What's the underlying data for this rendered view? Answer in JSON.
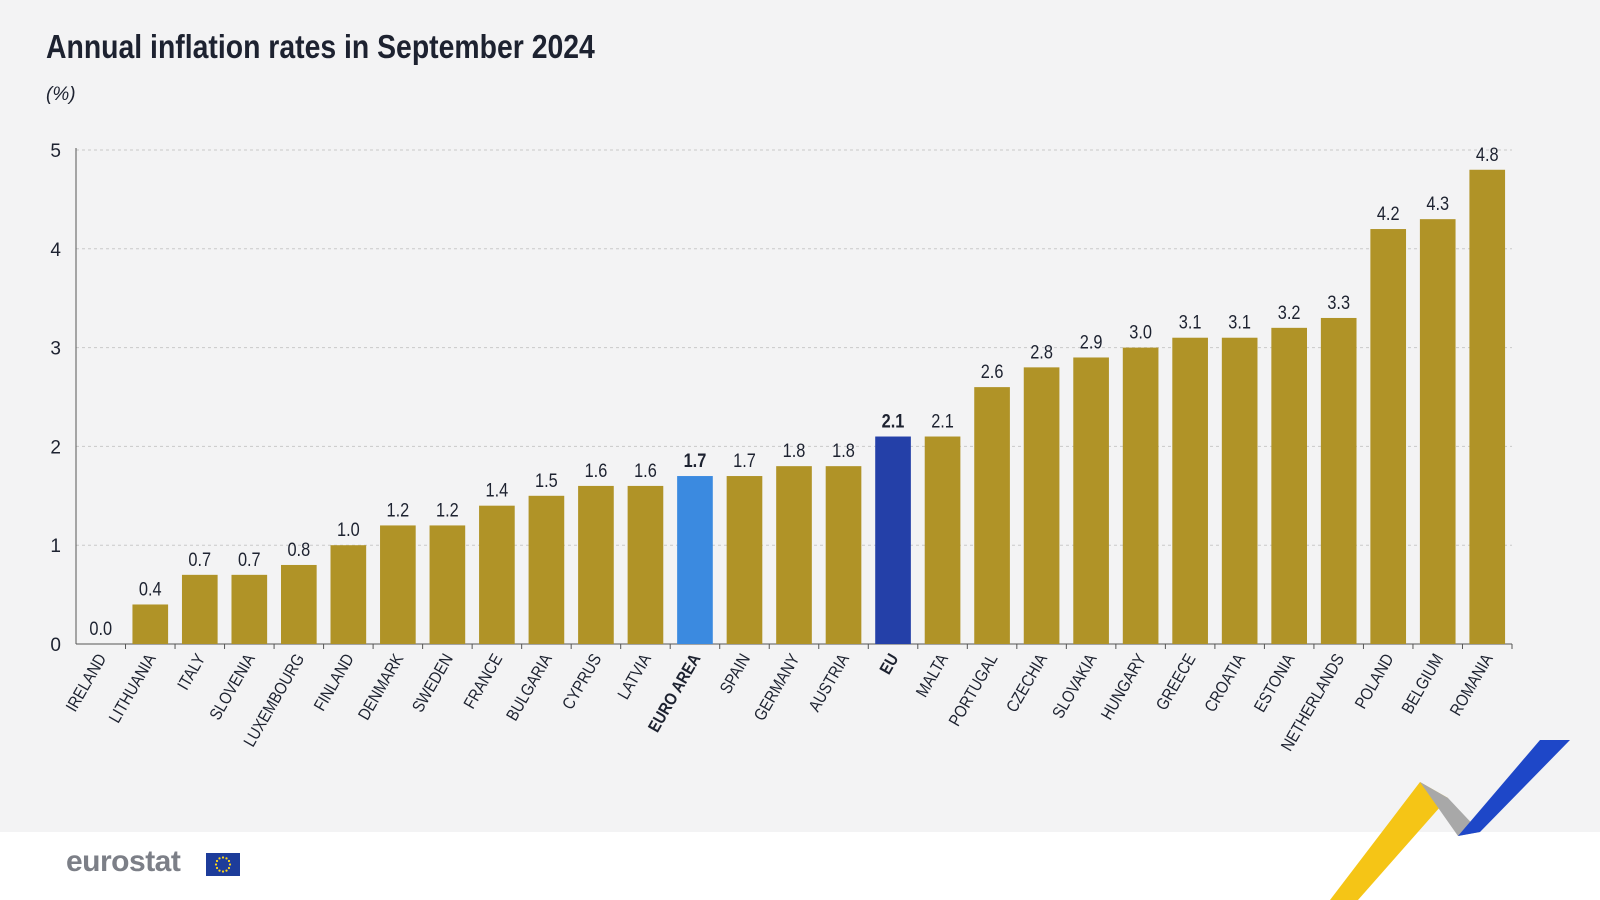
{
  "header": {
    "title": "Annual inflation rates in September 2024",
    "unit": "(%)"
  },
  "footer": {
    "logo_text": "eurostat"
  },
  "colors": {
    "country": "#b09327",
    "euro_area": "#3b8ae0",
    "eu": "#2440a8",
    "grid": "#c9c9c9",
    "axis": "#555555",
    "text": "#1d2230"
  },
  "chart_data": {
    "type": "bar",
    "title": "Annual inflation rates in September 2024",
    "ylabel": "(%)",
    "xlabel": "",
    "ylim": [
      0,
      5
    ],
    "yticks": [
      0,
      1,
      2,
      3,
      4,
      5
    ],
    "grid": true,
    "categories": [
      "IRELAND",
      "LITHUANIA",
      "ITALY",
      "SLOVENIA",
      "LUXEMBOURG",
      "FINLAND",
      "DENMARK",
      "SWEDEN",
      "FRANCE",
      "BULGARIA",
      "CYPRUS",
      "LATVIA",
      "EURO AREA",
      "SPAIN",
      "GERMANY",
      "AUSTRIA",
      "EU",
      "MALTA",
      "PORTUGAL",
      "CZECHIA",
      "SLOVAKIA",
      "HUNGARY",
      "GREECE",
      "CROATIA",
      "ESTONIA",
      "NETHERLANDS",
      "POLAND",
      "BELGIUM",
      "ROMANIA"
    ],
    "values": [
      0.0,
      0.4,
      0.7,
      0.7,
      0.8,
      1.0,
      1.2,
      1.2,
      1.4,
      1.5,
      1.6,
      1.6,
      1.7,
      1.7,
      1.8,
      1.8,
      2.1,
      2.1,
      2.6,
      2.8,
      2.9,
      3.0,
      3.1,
      3.1,
      3.2,
      3.3,
      4.2,
      4.3,
      4.8
    ],
    "value_labels": [
      "0.0",
      "0.4",
      "0.7",
      "0.7",
      "0.8",
      "1.0",
      "1.2",
      "1.2",
      "1.4",
      "1.5",
      "1.6",
      "1.6",
      "1.7",
      "1.7",
      "1.8",
      "1.8",
      "2.1",
      "2.1",
      "2.6",
      "2.8",
      "2.9",
      "3.0",
      "3.1",
      "3.1",
      "3.2",
      "3.3",
      "4.2",
      "4.3",
      "4.8"
    ],
    "highlight": {
      "EURO AREA": "euro_area",
      "EU": "eu"
    }
  }
}
